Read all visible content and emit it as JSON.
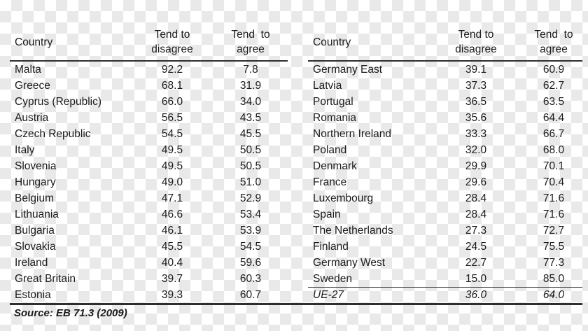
{
  "figure": {
    "source_note": "Source: EB 71.3 (2009)"
  },
  "tables": [
    {
      "name": "left-panel",
      "headers": {
        "country": "Country",
        "disagree": [
          "Tend to",
          "disagree"
        ],
        "agree": [
          "Tend  to",
          "agree"
        ]
      },
      "rows": [
        {
          "country": "Malta",
          "disagree": "92.2",
          "agree": "7.8"
        },
        {
          "country": "Greece",
          "disagree": "68.1",
          "agree": "31.9"
        },
        {
          "country": "Cyprus (Republic)",
          "disagree": "66.0",
          "agree": "34.0"
        },
        {
          "country": "Austria",
          "disagree": "56.5",
          "agree": "43.5"
        },
        {
          "country": "Czech Republic",
          "disagree": "54.5",
          "agree": "45.5"
        },
        {
          "country": "Italy",
          "disagree": "49.5",
          "agree": "50.5"
        },
        {
          "country": "Slovenia",
          "disagree": "49.5",
          "agree": "50.5"
        },
        {
          "country": "Hungary",
          "disagree": "49.0",
          "agree": "51.0"
        },
        {
          "country": "Belgium",
          "disagree": "47.1",
          "agree": "52.9"
        },
        {
          "country": "Lithuania",
          "disagree": "46.6",
          "agree": "53.4"
        },
        {
          "country": "Bulgaria",
          "disagree": "46.1",
          "agree": "53.9"
        },
        {
          "country": "Slovakia",
          "disagree": "45.5",
          "agree": "54.5"
        },
        {
          "country": "Ireland",
          "disagree": "40.4",
          "agree": "59.6"
        },
        {
          "country": "Great Britain",
          "disagree": "39.7",
          "agree": "60.3"
        },
        {
          "country": "Estonia",
          "disagree": "39.3",
          "agree": "60.7"
        }
      ]
    },
    {
      "name": "right-panel",
      "headers": {
        "country": "Country",
        "disagree": [
          "Tend to",
          "disagree"
        ],
        "agree": [
          "Tend  to",
          "agree"
        ]
      },
      "rows": [
        {
          "country": "Germany East",
          "disagree": "39.1",
          "agree": "60.9"
        },
        {
          "country": "Latvia",
          "disagree": "37.3",
          "agree": "62.7"
        },
        {
          "country": "Portugal",
          "disagree": "36.5",
          "agree": "63.5"
        },
        {
          "country": "Romania",
          "disagree": "35.6",
          "agree": "64.4"
        },
        {
          "country": "Northern Ireland",
          "disagree": "33.3",
          "agree": "66.7"
        },
        {
          "country": "Poland",
          "disagree": "32.0",
          "agree": "68.0"
        },
        {
          "country": "Denmark",
          "disagree": "29.9",
          "agree": "70.1"
        },
        {
          "country": "France",
          "disagree": "29.6",
          "agree": "70.4"
        },
        {
          "country": "Luxembourg",
          "disagree": "28.4",
          "agree": "71.6"
        },
        {
          "country": "Spain",
          "disagree": "28.4",
          "agree": "71.6"
        },
        {
          "country": "The Netherlands",
          "disagree": "27.3",
          "agree": "72.7"
        },
        {
          "country": "Finland",
          "disagree": "24.5",
          "agree": "75.5"
        },
        {
          "country": "Germany West",
          "disagree": "22.7",
          "agree": "77.3"
        },
        {
          "country": "Sweden",
          "disagree": "15.0",
          "agree": "85.0"
        }
      ],
      "summary_row": {
        "country": "UE-27",
        "disagree": "36.0",
        "agree": "64.0"
      }
    }
  ]
}
